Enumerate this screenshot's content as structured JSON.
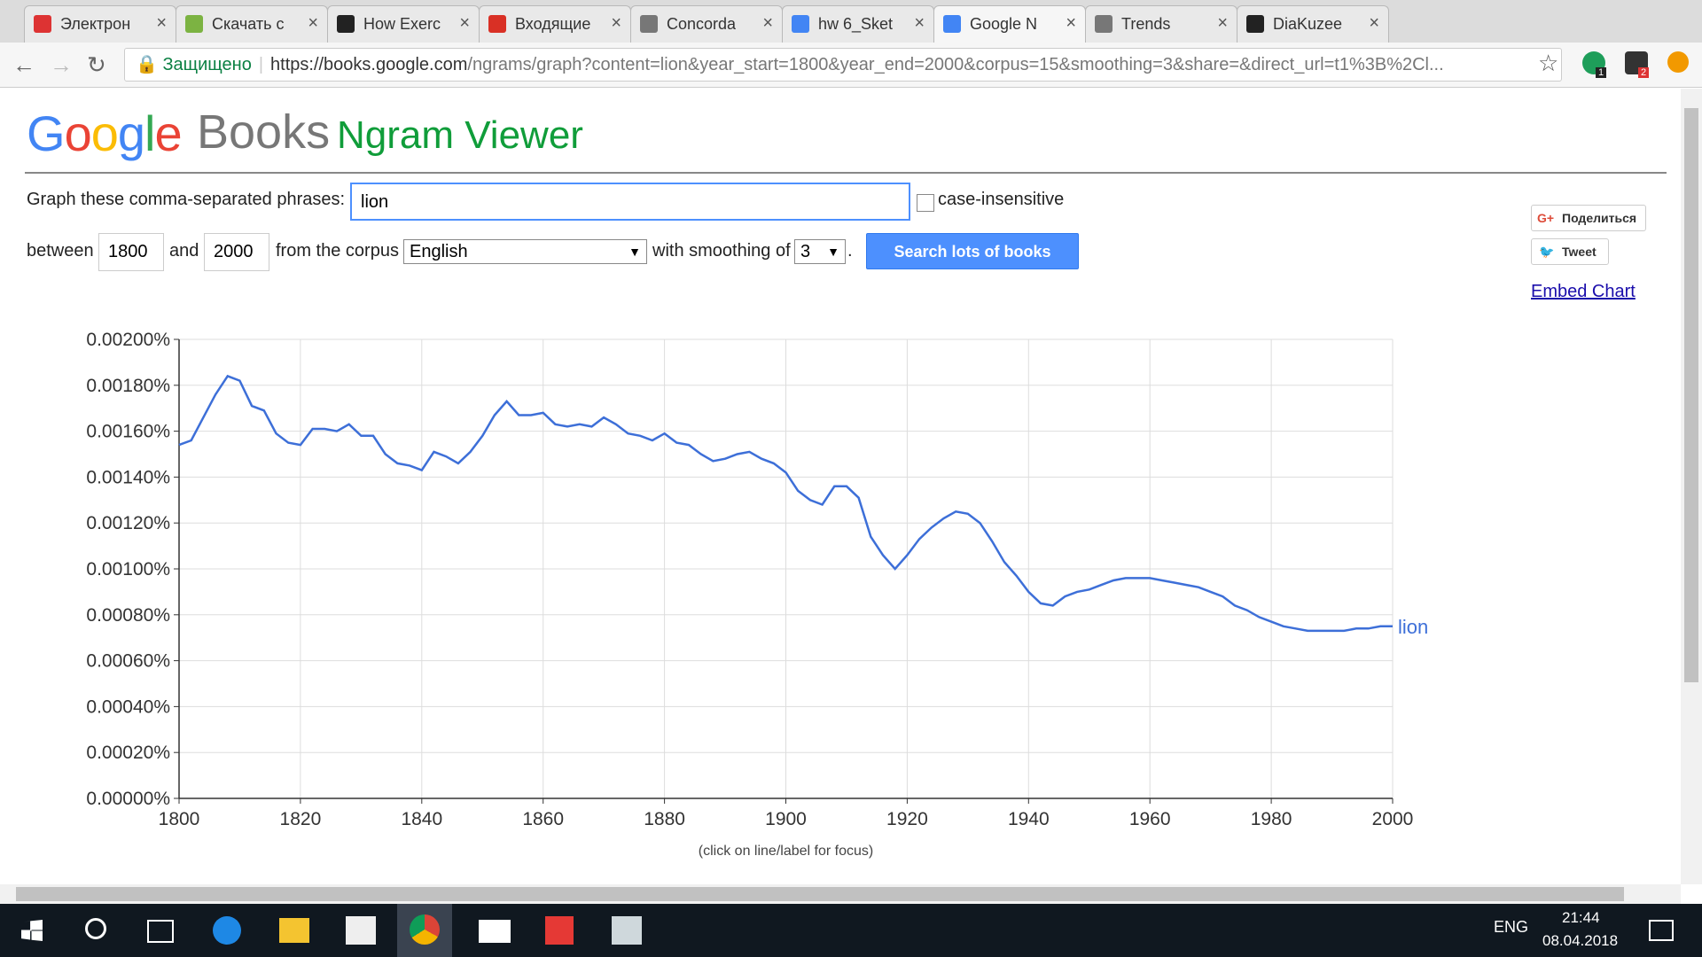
{
  "browser": {
    "tabs": [
      "Электрон",
      "Скачать с",
      "How Exerc",
      "Входящие",
      "Concorda",
      "hw 6_Sket",
      "Google N",
      "Trends",
      "DiaKuzee"
    ],
    "security": "Защищено",
    "url_host": "https://books.google.com",
    "url_path": "/ngrams/graph?content=lion&year_start=1800&year_end=2000&corpus=15&smoothing=3&share=&direct_url=t1%3B%2Cl...",
    "extension_badges": [
      "1",
      "2"
    ]
  },
  "page": {
    "logo_google": "Google",
    "logo_books": "Books",
    "title": "Ngram Viewer",
    "form": {
      "phrases_label": "Graph these comma-separated phrases:",
      "query": "lion",
      "case_insensitive": "case-insensitive",
      "between": "between",
      "year_start": "1800",
      "and": "and",
      "year_end": "2000",
      "corpus_label": "from the corpus",
      "corpus": "English",
      "smoothing_label": "with smoothing of",
      "smoothing": "3",
      "period": ".",
      "button": "Search lots of books"
    },
    "share": "Поделиться",
    "tweet": "Tweet",
    "embed": "Embed Chart"
  },
  "chart_data": {
    "type": "line",
    "note": "(click on line/label for focus)",
    "x": [
      1800,
      1802,
      1804,
      1806,
      1808,
      1810,
      1812,
      1814,
      1816,
      1818,
      1820,
      1822,
      1824,
      1826,
      1828,
      1830,
      1832,
      1834,
      1836,
      1838,
      1840,
      1842,
      1844,
      1846,
      1848,
      1850,
      1852,
      1854,
      1856,
      1858,
      1860,
      1862,
      1864,
      1866,
      1868,
      1870,
      1872,
      1874,
      1876,
      1878,
      1880,
      1882,
      1884,
      1886,
      1888,
      1890,
      1892,
      1894,
      1896,
      1898,
      1900,
      1902,
      1904,
      1906,
      1908,
      1910,
      1912,
      1914,
      1916,
      1918,
      1920,
      1922,
      1924,
      1926,
      1928,
      1930,
      1932,
      1934,
      1936,
      1938,
      1940,
      1942,
      1944,
      1946,
      1948,
      1950,
      1952,
      1954,
      1956,
      1958,
      1960,
      1962,
      1964,
      1966,
      1968,
      1970,
      1972,
      1974,
      1976,
      1978,
      1980,
      1982,
      1984,
      1986,
      1988,
      1990,
      1992,
      1994,
      1996,
      1998,
      2000
    ],
    "series": [
      {
        "name": "lion",
        "color": "#3d6fd8",
        "values": [
          0.00154,
          0.00156,
          0.00166,
          0.00176,
          0.00184,
          0.00182,
          0.00171,
          0.00169,
          0.00159,
          0.00155,
          0.00154,
          0.00161,
          0.00161,
          0.0016,
          0.00163,
          0.00158,
          0.00158,
          0.0015,
          0.00146,
          0.00145,
          0.00143,
          0.00151,
          0.00149,
          0.00146,
          0.00151,
          0.00158,
          0.00167,
          0.00173,
          0.00167,
          0.00167,
          0.00168,
          0.00163,
          0.00162,
          0.00163,
          0.00162,
          0.00166,
          0.00163,
          0.00159,
          0.00158,
          0.00156,
          0.00159,
          0.00155,
          0.00154,
          0.0015,
          0.00147,
          0.00148,
          0.0015,
          0.00151,
          0.00148,
          0.00146,
          0.00142,
          0.00134,
          0.0013,
          0.00128,
          0.00136,
          0.00136,
          0.00131,
          0.00114,
          0.00106,
          0.001,
          0.00106,
          0.00113,
          0.00118,
          0.00122,
          0.00125,
          0.00124,
          0.0012,
          0.00112,
          0.00103,
          0.00097,
          0.0009,
          0.00085,
          0.00084,
          0.00088,
          0.0009,
          0.00091,
          0.00093,
          0.00095,
          0.00096,
          0.00096,
          0.00096,
          0.00095,
          0.00094,
          0.00093,
          0.00092,
          0.0009,
          0.00088,
          0.00084,
          0.00082,
          0.00079,
          0.00077,
          0.00075,
          0.00074,
          0.00073,
          0.00073,
          0.00073,
          0.00073,
          0.00074,
          0.00074,
          0.00075,
          0.00075
        ]
      }
    ],
    "xlim": [
      1800,
      2000
    ],
    "xticks": [
      1800,
      1820,
      1840,
      1860,
      1880,
      1900,
      1920,
      1940,
      1960,
      1980,
      2000
    ],
    "ylim": [
      0,
      0.002
    ],
    "yticks": [
      {
        "value": 0,
        "label": "0.00000%"
      },
      {
        "value": 0.0002,
        "label": "0.00020%"
      },
      {
        "value": 0.0004,
        "label": "0.00040%"
      },
      {
        "value": 0.0006,
        "label": "0.00060%"
      },
      {
        "value": 0.0008,
        "label": "0.00080%"
      },
      {
        "value": 0.001,
        "label": "0.00100%"
      },
      {
        "value": 0.0012,
        "label": "0.00120%"
      },
      {
        "value": 0.0014,
        "label": "0.00140%"
      },
      {
        "value": 0.0016,
        "label": "0.00160%"
      },
      {
        "value": 0.0018,
        "label": "0.00180%"
      },
      {
        "value": 0.002,
        "label": "0.00200%"
      }
    ],
    "grid": true
  },
  "taskbar": {
    "language": "ENG",
    "time": "21:44",
    "date": "08.04.2018"
  }
}
